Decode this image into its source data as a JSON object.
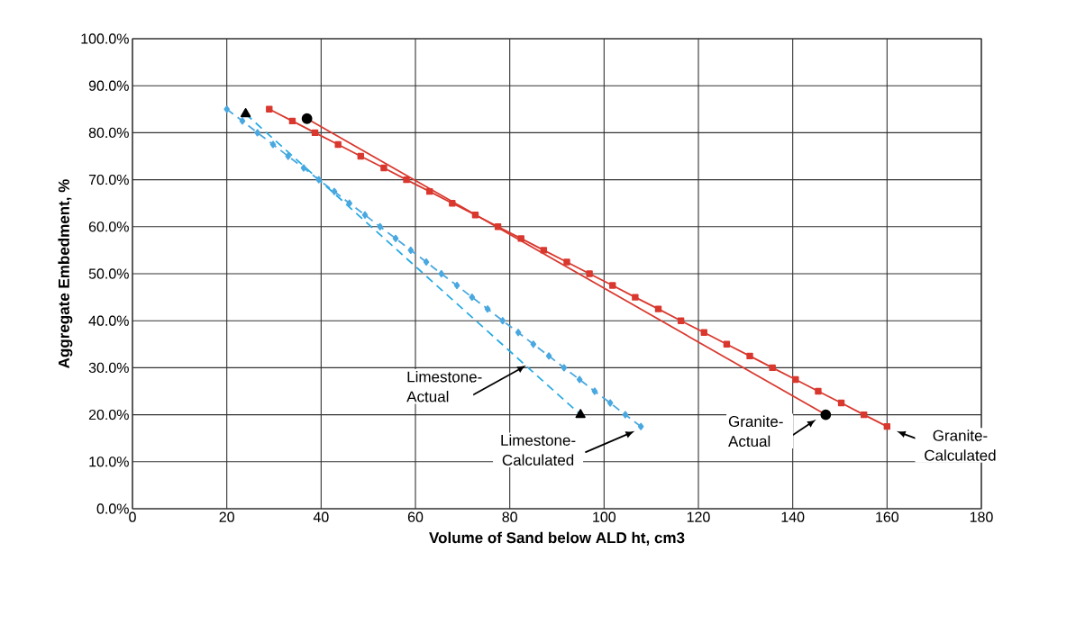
{
  "chart_data": {
    "type": "line",
    "xlabel": "Volume of Sand below ALD ht, cm3",
    "ylabel": "Aggregate Embedment, %",
    "xlim": [
      0,
      180
    ],
    "xticks": [
      0,
      20,
      40,
      60,
      80,
      100,
      120,
      140,
      160,
      180
    ],
    "ylim": [
      0,
      100
    ],
    "yticks": [
      {
        "value": 0,
        "label": "0.0%"
      },
      {
        "value": 10,
        "label": "10.0%"
      },
      {
        "value": 20,
        "label": "20.0%"
      },
      {
        "value": 30,
        "label": "30.0%"
      },
      {
        "value": 40,
        "label": "40.0%"
      },
      {
        "value": 50,
        "label": "50.0%"
      },
      {
        "value": 60,
        "label": "60.0%"
      },
      {
        "value": 70,
        "label": "70.0%"
      },
      {
        "value": 80,
        "label": "80.0%"
      },
      {
        "value": 90,
        "label": "90.0%"
      },
      {
        "value": 100,
        "label": "100.0%"
      }
    ],
    "grid": true,
    "series": [
      {
        "color": "#4aa8e0",
        "marker": "diamond",
        "line_style": "dashed",
        "x": [
          20,
          23.3,
          26.5,
          29.8,
          33,
          36.3,
          39.5,
          42.8,
          46,
          49.3,
          52.5,
          55.8,
          59,
          62.3,
          65.5,
          68.8,
          72,
          75.3,
          78.5,
          81.8,
          85,
          88.3,
          91.5,
          94.8,
          98,
          101.3,
          104.5,
          107.8
        ],
        "values": [
          85,
          82.5,
          80,
          77.5,
          75,
          72.5,
          70,
          67.5,
          65,
          62.5,
          60,
          57.5,
          55,
          52.5,
          50,
          47.5,
          45,
          42.5,
          40,
          37.5,
          35,
          32.5,
          30,
          27.5,
          25,
          22.5,
          20,
          17.5
        ]
      },
      {
        "color": "#29abe2",
        "marker": "triangle",
        "line_style": "dashed",
        "x": [
          24,
          95
        ],
        "values": [
          84,
          20
        ]
      },
      {
        "color": "#d9382e",
        "marker": "square",
        "line_style": "solid",
        "x": [
          29,
          33.9,
          38.7,
          43.6,
          48.4,
          53.3,
          58.1,
          63,
          67.8,
          72.7,
          77.5,
          82.4,
          87.2,
          92.1,
          96.9,
          101.8,
          106.6,
          111.5,
          116.3,
          121.2,
          126,
          130.9,
          135.7,
          140.6,
          145.4,
          150.3,
          155.1,
          160
        ],
        "values": [
          85,
          82.5,
          80,
          77.5,
          75,
          72.5,
          70,
          67.5,
          65,
          62.5,
          60,
          57.5,
          55,
          52.5,
          50,
          47.5,
          45,
          42.5,
          40,
          37.5,
          35,
          32.5,
          30,
          27.5,
          25,
          22.5,
          20,
          17.5
        ]
      },
      {
        "color": "#d9382e",
        "marker": "circle",
        "line_style": "solid",
        "x": [
          37,
          147
        ],
        "values": [
          83,
          20
        ]
      }
    ],
    "annotations": [
      "Limestone-Actual",
      "Limestone-Calculated",
      "Granite-Actual",
      "Granite-Calculated"
    ]
  }
}
